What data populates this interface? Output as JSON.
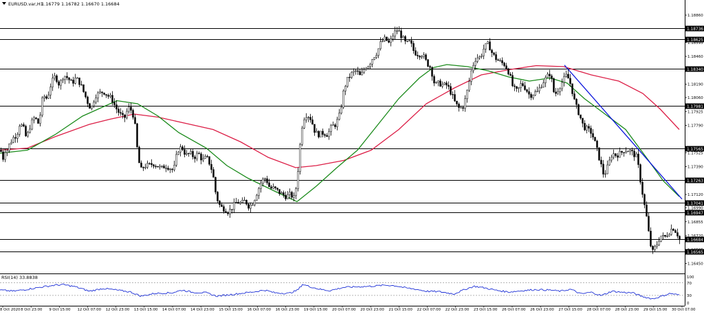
{
  "header": {
    "symbol": "EURUSD.var,H1",
    "ohlc": "1.16779 1.16782 1.16670 1.16684"
  },
  "indicator": {
    "label": "RSI(14) 33.8838",
    "levels": [
      "100",
      "70",
      "30",
      "0"
    ]
  },
  "colors": {
    "background": "#ffffff",
    "candle": "#000000",
    "ma_fast": "#1a8a1a",
    "ma_slow": "#dc1e46",
    "trendline": "#0a14dc",
    "hline": "#000000",
    "rsi": "#1c2fd6"
  },
  "chart_data": {
    "type": "candlestick",
    "symbol": "EURUSD",
    "timeframe": "H1",
    "ylim": [
      1.1638,
      1.1898
    ],
    "price_ticks": [
      "1.18860",
      "1.18595",
      "1.18460",
      "1.18190",
      "1.18060",
      "1.17925",
      "1.17790",
      "1.17525",
      "1.17390",
      "1.17120",
      "1.16990",
      "1.16855",
      "1.16720",
      "1.16585",
      "1.16450"
    ],
    "x_labels": [
      "8 Oct 2020",
      "8 Oct 23:00",
      "9 Oct 15:00",
      "12 Oct 07:00",
      "12 Oct 23:00",
      "13 Oct 15:00",
      "14 Oct 07:00",
      "14 Oct 23:00",
      "15 Oct 15:00",
      "16 Oct 07:00",
      "16 Oct 23:00",
      "19 Oct 15:00",
      "20 Oct 07:00",
      "20 Oct 23:00",
      "21 Oct 15:00",
      "22 Oct 07:00",
      "22 Oct 23:00",
      "23 Oct 15:00",
      "26 Oct 07:00",
      "26 Oct 23:00",
      "27 Oct 15:00",
      "28 Oct 07:00",
      "28 Oct 23:00",
      "29 Oct 15:00",
      "30 Oct 07:00"
    ],
    "horizontal_levels": [
      "1.18736",
      "1.18625",
      "1.18340",
      "1.17981",
      "1.17565",
      "1.17263",
      "1.17041",
      "1.16947",
      "1.16684",
      "1.16565"
    ],
    "current_price": "1.16684",
    "price_path": [
      [
        0,
        1.1755
      ],
      [
        2,
        1.1752
      ],
      [
        5,
        1.1745
      ],
      [
        8,
        1.176
      ],
      [
        10,
        1.1755
      ],
      [
        14,
        1.1762
      ],
      [
        20,
        1.1768
      ],
      [
        24,
        1.177
      ],
      [
        28,
        1.178
      ],
      [
        33,
        1.1778
      ],
      [
        38,
        1.1766
      ],
      [
        44,
        1.178
      ],
      [
        50,
        1.1787
      ],
      [
        56,
        1.178
      ],
      [
        62,
        1.1808
      ],
      [
        68,
        1.1805
      ],
      [
        74,
        1.182
      ],
      [
        80,
        1.1827
      ],
      [
        86,
        1.1818
      ],
      [
        92,
        1.1828
      ],
      [
        98,
        1.1825
      ],
      [
        104,
        1.182
      ],
      [
        110,
        1.1825
      ],
      [
        116,
        1.182
      ],
      [
        122,
        1.181
      ],
      [
        128,
        1.18
      ],
      [
        132,
        1.1795
      ],
      [
        138,
        1.1808
      ],
      [
        144,
        1.181
      ],
      [
        150,
        1.1812
      ],
      [
        156,
        1.1808
      ],
      [
        162,
        1.1805
      ],
      [
        168,
        1.1796
      ],
      [
        174,
        1.179
      ],
      [
        180,
        1.1785
      ],
      [
        186,
        1.1796
      ],
      [
        192,
        1.1793
      ],
      [
        196,
        1.1778
      ],
      [
        200,
        1.175
      ],
      [
        204,
        1.1735
      ],
      [
        210,
        1.174
      ],
      [
        216,
        1.174
      ],
      [
        222,
        1.1742
      ],
      [
        228,
        1.174
      ],
      [
        234,
        1.1737
      ],
      [
        240,
        1.174
      ],
      [
        246,
        1.1738
      ],
      [
        252,
        1.1735
      ],
      [
        258,
        1.1755
      ],
      [
        264,
        1.1758
      ],
      [
        270,
        1.175
      ],
      [
        276,
        1.1752
      ],
      [
        282,
        1.1748
      ],
      [
        288,
        1.1752
      ],
      [
        294,
        1.1745
      ],
      [
        300,
        1.1748
      ],
      [
        306,
        1.174
      ],
      [
        310,
        1.1728
      ],
      [
        314,
        1.171
      ],
      [
        320,
        1.17
      ],
      [
        326,
        1.1698
      ],
      [
        332,
        1.1695
      ],
      [
        338,
        1.17
      ],
      [
        344,
        1.1705
      ],
      [
        350,
        1.1703
      ],
      [
        356,
        1.1706
      ],
      [
        362,
        1.17
      ],
      [
        368,
        1.1705
      ],
      [
        374,
        1.1715
      ],
      [
        380,
        1.1725
      ],
      [
        386,
        1.1728
      ],
      [
        392,
        1.1718
      ],
      [
        398,
        1.1718
      ],
      [
        404,
        1.1715
      ],
      [
        410,
        1.1712
      ],
      [
        416,
        1.171
      ],
      [
        422,
        1.1712
      ],
      [
        428,
        1.1708
      ],
      [
        432,
        1.1728
      ],
      [
        436,
        1.176
      ],
      [
        440,
        1.1785
      ],
      [
        446,
        1.179
      ],
      [
        452,
        1.1785
      ],
      [
        458,
        1.1772
      ],
      [
        464,
        1.177
      ],
      [
        470,
        1.1772
      ],
      [
        476,
        1.177
      ],
      [
        482,
        1.1778
      ],
      [
        488,
        1.178
      ],
      [
        494,
        1.179
      ],
      [
        500,
        1.1815
      ],
      [
        506,
        1.1825
      ],
      [
        512,
        1.183
      ],
      [
        518,
        1.1832
      ],
      [
        524,
        1.1826
      ],
      [
        530,
        1.1835
      ],
      [
        536,
        1.1838
      ],
      [
        542,
        1.1845
      ],
      [
        548,
        1.185
      ],
      [
        554,
        1.186
      ],
      [
        560,
        1.1863
      ],
      [
        566,
        1.1858
      ],
      [
        572,
        1.1868
      ],
      [
        578,
        1.1872
      ],
      [
        584,
        1.1865
      ],
      [
        590,
        1.1858
      ],
      [
        596,
        1.186
      ],
      [
        602,
        1.185
      ],
      [
        608,
        1.1848
      ],
      [
        614,
        1.1848
      ],
      [
        620,
        1.184
      ],
      [
        626,
        1.1835
      ],
      [
        632,
        1.1818
      ],
      [
        638,
        1.182
      ],
      [
        644,
        1.1818
      ],
      [
        650,
        1.1818
      ],
      [
        656,
        1.181
      ],
      [
        662,
        1.18
      ],
      [
        668,
        1.1795
      ],
      [
        674,
        1.1798
      ],
      [
        680,
        1.1815
      ],
      [
        686,
        1.1835
      ],
      [
        692,
        1.1845
      ],
      [
        698,
        1.1845
      ],
      [
        704,
        1.1855
      ],
      [
        710,
        1.1858
      ],
      [
        716,
        1.1848
      ],
      [
        722,
        1.1843
      ],
      [
        728,
        1.184
      ],
      [
        734,
        1.1838
      ],
      [
        740,
        1.183
      ],
      [
        746,
        1.1815
      ],
      [
        752,
        1.1812
      ],
      [
        758,
        1.182
      ],
      [
        764,
        1.1815
      ],
      [
        770,
        1.1808
      ],
      [
        776,
        1.181
      ],
      [
        782,
        1.1812
      ],
      [
        788,
        1.182
      ],
      [
        794,
        1.1825
      ],
      [
        800,
        1.183
      ],
      [
        806,
        1.1808
      ],
      [
        812,
        1.1815
      ],
      [
        818,
        1.1822
      ],
      [
        824,
        1.1828
      ],
      [
        830,
        1.1818
      ],
      [
        836,
        1.18
      ],
      [
        842,
        1.179
      ],
      [
        848,
        1.1778
      ],
      [
        854,
        1.1775
      ],
      [
        860,
        1.1772
      ],
      [
        866,
        1.176
      ],
      [
        872,
        1.1745
      ],
      [
        878,
        1.173
      ],
      [
        884,
        1.174
      ],
      [
        890,
        1.1752
      ],
      [
        896,
        1.175
      ],
      [
        902,
        1.1752
      ],
      [
        908,
        1.1755
      ],
      [
        914,
        1.1755
      ],
      [
        920,
        1.1752
      ],
      [
        926,
        1.1748
      ],
      [
        930,
        1.173
      ],
      [
        936,
        1.1705
      ],
      [
        940,
        1.169
      ],
      [
        944,
        1.167
      ],
      [
        948,
        1.1655
      ],
      [
        952,
        1.166
      ],
      [
        956,
        1.1665
      ],
      [
        960,
        1.1672
      ],
      [
        966,
        1.167
      ],
      [
        972,
        1.1675
      ],
      [
        978,
        1.168
      ],
      [
        984,
        1.1675
      ],
      [
        988,
        1.1668
      ]
    ],
    "ma_fast": [
      [
        0,
        1.1752
      ],
      [
        40,
        1.1755
      ],
      [
        80,
        1.177
      ],
      [
        120,
        1.1788
      ],
      [
        170,
        1.1803
      ],
      [
        200,
        1.18
      ],
      [
        230,
        1.1788
      ],
      [
        260,
        1.1772
      ],
      [
        300,
        1.1757
      ],
      [
        330,
        1.174
      ],
      [
        360,
        1.1728
      ],
      [
        400,
        1.1715
      ],
      [
        432,
        1.1705
      ],
      [
        460,
        1.172
      ],
      [
        490,
        1.1738
      ],
      [
        520,
        1.1755
      ],
      [
        550,
        1.178
      ],
      [
        580,
        1.1805
      ],
      [
        610,
        1.1825
      ],
      [
        630,
        1.1835
      ],
      [
        650,
        1.1838
      ],
      [
        680,
        1.1836
      ],
      [
        710,
        1.1832
      ],
      [
        740,
        1.1826
      ],
      [
        770,
        1.1822
      ],
      [
        800,
        1.1825
      ],
      [
        825,
        1.182
      ],
      [
        850,
        1.1805
      ],
      [
        880,
        1.179
      ],
      [
        910,
        1.1775
      ],
      [
        940,
        1.1748
      ],
      [
        965,
        1.1725
      ],
      [
        988,
        1.171
      ]
    ],
    "ma_slow": [
      [
        0,
        1.1755
      ],
      [
        40,
        1.1757
      ],
      [
        80,
        1.1768
      ],
      [
        130,
        1.178
      ],
      [
        160,
        1.1785
      ],
      [
        195,
        1.179
      ],
      [
        230,
        1.1787
      ],
      [
        270,
        1.1781
      ],
      [
        310,
        1.1775
      ],
      [
        350,
        1.1763
      ],
      [
        390,
        1.1748
      ],
      [
        430,
        1.1738
      ],
      [
        460,
        1.174
      ],
      [
        500,
        1.1745
      ],
      [
        540,
        1.1755
      ],
      [
        580,
        1.1775
      ],
      [
        620,
        1.18
      ],
      [
        660,
        1.1815
      ],
      [
        700,
        1.1828
      ],
      [
        740,
        1.1833
      ],
      [
        780,
        1.1837
      ],
      [
        820,
        1.1836
      ],
      [
        860,
        1.1828
      ],
      [
        900,
        1.1822
      ],
      [
        935,
        1.181
      ],
      [
        960,
        1.1795
      ],
      [
        988,
        1.1775
      ]
    ],
    "trendline": [
      [
        821,
        1.18375
      ],
      [
        992,
        1.17075
      ]
    ],
    "rsi": [
      [
        0,
        52
      ],
      [
        20,
        48
      ],
      [
        40,
        55
      ],
      [
        60,
        63
      ],
      [
        80,
        70
      ],
      [
        92,
        72
      ],
      [
        110,
        64
      ],
      [
        130,
        48
      ],
      [
        150,
        58
      ],
      [
        170,
        52
      ],
      [
        190,
        45
      ],
      [
        205,
        30
      ],
      [
        225,
        40
      ],
      [
        250,
        42
      ],
      [
        265,
        52
      ],
      [
        280,
        44
      ],
      [
        300,
        42
      ],
      [
        315,
        30
      ],
      [
        330,
        34
      ],
      [
        350,
        40
      ],
      [
        370,
        46
      ],
      [
        385,
        52
      ],
      [
        400,
        42
      ],
      [
        420,
        40
      ],
      [
        433,
        52
      ],
      [
        440,
        73
      ],
      [
        450,
        65
      ],
      [
        465,
        55
      ],
      [
        480,
        50
      ],
      [
        500,
        62
      ],
      [
        520,
        64
      ],
      [
        540,
        66
      ],
      [
        560,
        70
      ],
      [
        575,
        68
      ],
      [
        590,
        60
      ],
      [
        605,
        55
      ],
      [
        620,
        48
      ],
      [
        640,
        46
      ],
      [
        660,
        38
      ],
      [
        680,
        58
      ],
      [
        690,
        66
      ],
      [
        705,
        60
      ],
      [
        720,
        52
      ],
      [
        740,
        45
      ],
      [
        760,
        50
      ],
      [
        780,
        54
      ],
      [
        800,
        52
      ],
      [
        815,
        48
      ],
      [
        830,
        55
      ],
      [
        845,
        38
      ],
      [
        860,
        44
      ],
      [
        875,
        32
      ],
      [
        890,
        48
      ],
      [
        905,
        44
      ],
      [
        920,
        42
      ],
      [
        935,
        28
      ],
      [
        950,
        20
      ],
      [
        960,
        28
      ],
      [
        975,
        40
      ],
      [
        988,
        34
      ]
    ]
  }
}
